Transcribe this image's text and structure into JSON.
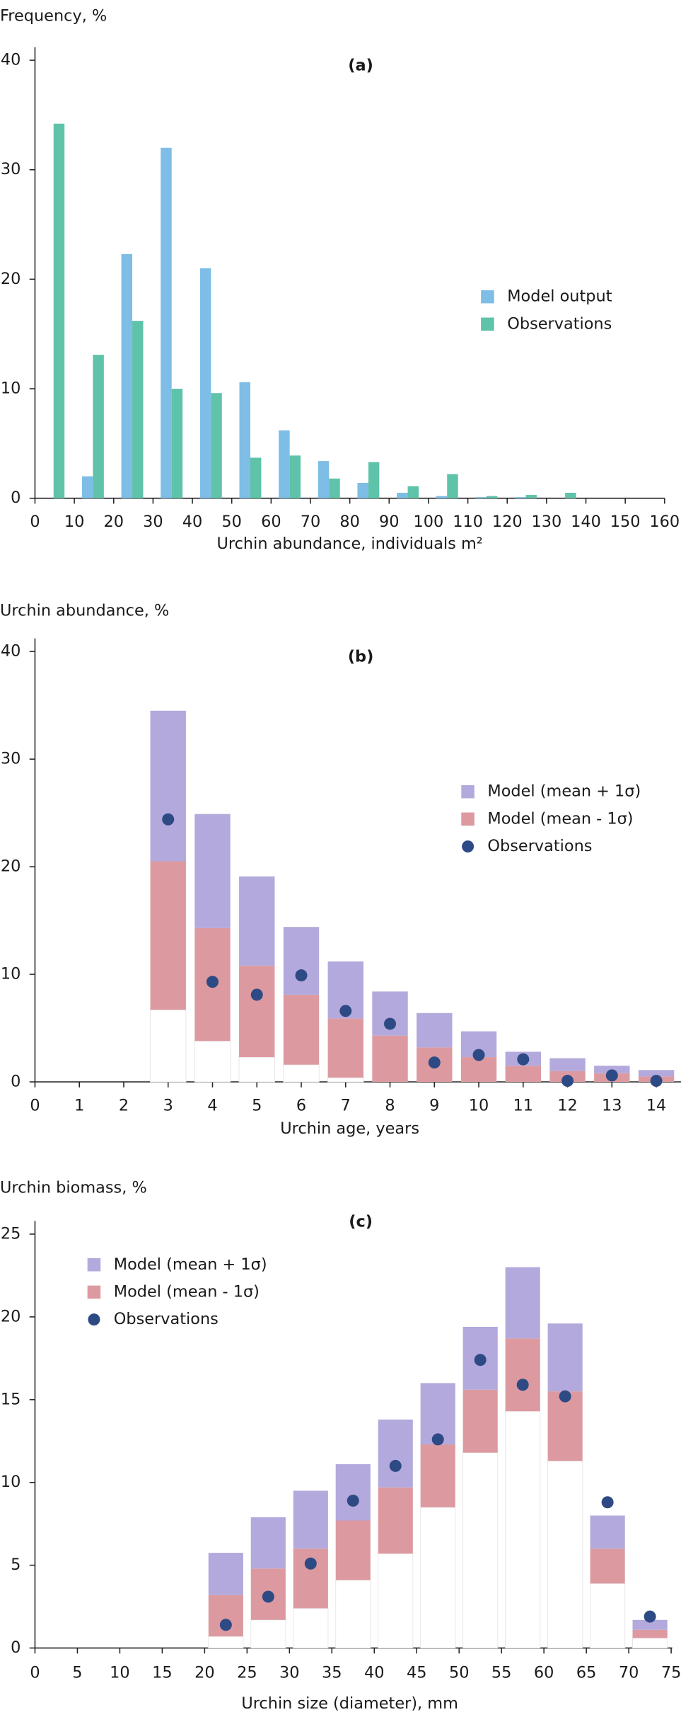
{
  "chart_data": [
    {
      "type": "bar",
      "title": "(a)",
      "y_label": "Frequency, %",
      "x_label": "Urchin abundance, individuals m²",
      "x": [
        5,
        15,
        25,
        35,
        45,
        55,
        65,
        75,
        85,
        95,
        105,
        115,
        125,
        135,
        145,
        155
      ],
      "series": [
        {
          "name": "Model output",
          "color": "#7dbde6",
          "values": [
            0,
            2,
            22.3,
            32,
            21,
            10.6,
            6.2,
            3.4,
            1.4,
            0.5,
            0.2,
            0.1,
            0.1,
            0,
            0,
            0
          ]
        },
        {
          "name": "Observations",
          "color": "#5fc3aa",
          "values": [
            34.2,
            13.1,
            16.2,
            10,
            9.6,
            3.7,
            3.9,
            1.8,
            3.3,
            1.1,
            2.2,
            0.2,
            0.3,
            0.5,
            0,
            0
          ]
        }
      ],
      "xlim": [
        0,
        160
      ],
      "xticks": [
        0,
        10,
        20,
        30,
        40,
        50,
        60,
        70,
        80,
        90,
        100,
        110,
        120,
        130,
        140,
        150,
        160
      ],
      "ylim": [
        0,
        40
      ],
      "yticks": [
        0,
        10,
        20,
        30,
        40
      ],
      "grid": false,
      "legend": "right"
    },
    {
      "type": "floating_bar",
      "title": "(b)",
      "y_label": "Urchin abundance, %",
      "x_label": "Urchin age, years",
      "categories": [
        "0",
        "1",
        "2",
        "3",
        "4",
        "5",
        "6",
        "7",
        "8",
        "9",
        "10",
        "11",
        "12",
        "13",
        "14"
      ],
      "series": [
        {
          "name": "Model (mean + 1σ)",
          "color": "#b3a9dc",
          "values": [
            null,
            null,
            null,
            34.5,
            24.9,
            19.1,
            14.4,
            11.2,
            8.4,
            6.4,
            4.7,
            2.8,
            2.2,
            1.5,
            1.1
          ]
        },
        {
          "name": "Model (mean - 1σ)",
          "color": "#dc9aa0",
          "values": [
            null,
            null,
            null,
            [
              6.7,
              20.5
            ],
            [
              3.8,
              14.3
            ],
            [
              2.3,
              10.8
            ],
            [
              1.6,
              8.1
            ],
            [
              0.4,
              5.9
            ],
            [
              0,
              4.3
            ],
            [
              0,
              3.2
            ],
            [
              0,
              2.3
            ],
            [
              0,
              1.5
            ],
            [
              0,
              1.0
            ],
            [
              0,
              0.8
            ],
            [
              0,
              0.5
            ]
          ]
        },
        {
          "name": "Observations",
          "color": "#2e4a85",
          "values": [
            null,
            null,
            null,
            24.4,
            9.3,
            8.1,
            9.9,
            6.6,
            5.4,
            1.8,
            2.5,
            2.1,
            0.1,
            0.6,
            0.1
          ]
        }
      ],
      "ylim": [
        0,
        40
      ],
      "yticks": [
        0,
        10,
        20,
        30,
        40
      ],
      "grid": false,
      "legend": "right"
    },
    {
      "type": "floating_bar",
      "title": "(c)",
      "y_label": "Urchin biomass, %",
      "x_label": "Urchin size (diameter), mm",
      "x": [
        22.5,
        27.5,
        32.5,
        37.5,
        42.5,
        47.5,
        52.5,
        57.5,
        62.5,
        67.5,
        72.5
      ],
      "series": [
        {
          "name": "Model (mean + 1σ)",
          "color": "#b3a9dc",
          "values": [
            5.75,
            7.9,
            9.5,
            11.1,
            13.8,
            16.0,
            19.4,
            23.0,
            19.6,
            8.0,
            1.7
          ]
        },
        {
          "name": "Model (mean - 1σ)",
          "color": "#dc9aa0",
          "values": [
            [
              0.7,
              3.2
            ],
            [
              1.7,
              4.8
            ],
            [
              2.4,
              6.0
            ],
            [
              4.1,
              7.7
            ],
            [
              5.7,
              9.7
            ],
            [
              8.5,
              12.3
            ],
            [
              11.8,
              15.6
            ],
            [
              14.3,
              18.7
            ],
            [
              11.3,
              15.5
            ],
            [
              3.9,
              6.0
            ],
            [
              0.6,
              1.1
            ]
          ]
        },
        {
          "name": "Observations",
          "color": "#2e4a85",
          "values": [
            1.4,
            3.1,
            5.1,
            8.9,
            11.0,
            12.6,
            17.4,
            15.9,
            15.2,
            8.8,
            1.9
          ]
        }
      ],
      "xlim": [
        0,
        75
      ],
      "xticks": [
        0,
        5,
        10,
        15,
        20,
        25,
        30,
        35,
        40,
        45,
        50,
        55,
        60,
        65,
        70,
        75
      ],
      "ylim": [
        0,
        25
      ],
      "yticks": [
        0,
        5,
        10,
        15,
        20,
        25
      ],
      "grid": false,
      "legend": "left"
    }
  ]
}
